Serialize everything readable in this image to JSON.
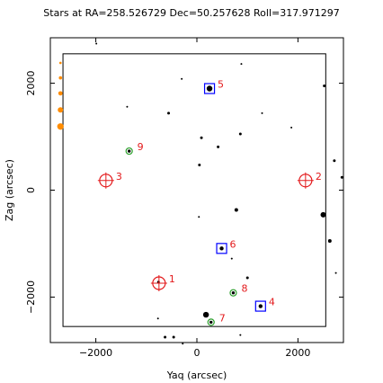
{
  "chart_data": {
    "type": "scatter",
    "title": "Stars at RA=258.526729 Dec=50.257628 Roll=317.971297",
    "xlabel": "Yaq (arcsec)",
    "ylabel": "Zag (arcsec)",
    "xlim": [
      -2900,
      2900
    ],
    "ylim": [
      -2850,
      2850
    ],
    "x_ticks": [
      -2000,
      0,
      2000
    ],
    "x_tick_labels": [
      "−2000",
      "0",
      "2000"
    ],
    "y_ticks": [
      -2000,
      0,
      2000
    ],
    "y_tick_labels": [
      "−2000",
      "0",
      "2000"
    ],
    "grid": false,
    "legend": "none",
    "ccd_box": {
      "x": [
        -2650,
        2550
      ],
      "y": [
        -2550,
        2550
      ]
    },
    "colors": {
      "star": "#000000",
      "guide_star": "#0000ff",
      "acq_star": "#2ca02c",
      "fid": "#e31a1c",
      "label": "#e31a1c",
      "mag_scale": "#ff8c00"
    },
    "stars": [
      {
        "x": -1990,
        "y": 2740,
        "r": 1.0
      },
      {
        "x": -300,
        "y": 2080,
        "r": 1.0
      },
      {
        "x": 880,
        "y": 2360,
        "r": 1.0
      },
      {
        "x": -1380,
        "y": 1560,
        "r": 1.0
      },
      {
        "x": -560,
        "y": 1440,
        "r": 1.5
      },
      {
        "x": 1290,
        "y": 1440,
        "r": 1.0
      },
      {
        "x": 1870,
        "y": 1170,
        "r": 1.0
      },
      {
        "x": 860,
        "y": 1050,
        "r": 1.5
      },
      {
        "x": 90,
        "y": 980,
        "r": 1.5
      },
      {
        "x": 420,
        "y": 810,
        "r": 1.5
      },
      {
        "x": 2520,
        "y": 1950,
        "r": 1.5
      },
      {
        "x": 2720,
        "y": 550,
        "r": 1.5
      },
      {
        "x": 2870,
        "y": 240,
        "r": 1.5
      },
      {
        "x": 50,
        "y": 470,
        "r": 1.5
      },
      {
        "x": 780,
        "y": -370,
        "r": 2.0
      },
      {
        "x": 40,
        "y": -500,
        "r": 1.0
      },
      {
        "x": 2500,
        "y": -460,
        "r": 3.0
      },
      {
        "x": 2630,
        "y": -950,
        "r": 2.0
      },
      {
        "x": 2750,
        "y": -1550,
        "r": 1.0
      },
      {
        "x": 1000,
        "y": -1640,
        "r": 1.5
      },
      {
        "x": 690,
        "y": -1280,
        "r": 1.0
      },
      {
        "x": -760,
        "y": -1720,
        "r": 1.5
      },
      {
        "x": 180,
        "y": -2330,
        "r": 3.2
      },
      {
        "x": -770,
        "y": -2400,
        "r": 1.0
      },
      {
        "x": -630,
        "y": -2750,
        "r": 1.5
      },
      {
        "x": -460,
        "y": -2750,
        "r": 1.5
      },
      {
        "x": -280,
        "y": -2870,
        "r": 1.0
      },
      {
        "x": 860,
        "y": -2710,
        "r": 1.0
      }
    ],
    "markers": [
      {
        "id": "1",
        "kind": "fid",
        "x": -750,
        "y": -1740
      },
      {
        "id": "2",
        "kind": "fid",
        "x": 2150,
        "y": 180
      },
      {
        "id": "3",
        "kind": "fid",
        "x": -1800,
        "y": 180
      },
      {
        "id": "4",
        "kind": "guide",
        "x": 1260,
        "y": -2170
      },
      {
        "id": "5",
        "kind": "guide",
        "x": 250,
        "y": 1900
      },
      {
        "id": "6",
        "kind": "guide",
        "x": 490,
        "y": -1090
      },
      {
        "id": "7",
        "kind": "acq",
        "x": 280,
        "y": -2470
      },
      {
        "id": "8",
        "kind": "acq",
        "x": 720,
        "y": -1920
      },
      {
        "id": "9",
        "kind": "acq",
        "x": -1340,
        "y": 730
      }
    ],
    "mag_scale": [
      {
        "y": 2380,
        "r": 1.3
      },
      {
        "y": 2100,
        "r": 1.8
      },
      {
        "y": 1810,
        "r": 2.4
      },
      {
        "y": 1500,
        "r": 3.0
      },
      {
        "y": 1190,
        "r": 3.6
      }
    ],
    "mag_scale_x": -2700
  }
}
